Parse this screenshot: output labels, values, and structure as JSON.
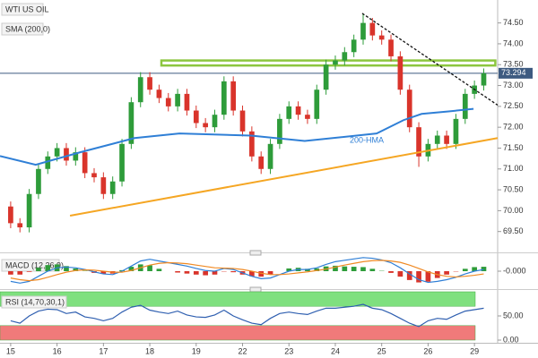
{
  "chart_data": [
    {
      "type": "candlestick",
      "title": "WTI US OIL",
      "subtitle": "SMA (200,0)",
      "up_color": "#2e9c3a",
      "down_color": "#d9342b",
      "x": [
        0,
        0.2,
        0.4,
        0.6,
        0.8,
        1,
        1.2,
        1.4,
        1.6,
        1.8,
        2,
        2.2,
        2.4,
        2.6,
        2.8,
        3,
        3.2,
        3.4,
        3.6,
        3.8,
        4,
        4.2,
        4.4,
        4.6,
        4.8,
        5,
        5.2,
        5.4,
        5.6,
        5.8,
        6,
        6.2,
        6.4,
        6.6,
        6.8,
        7,
        7.2,
        7.4,
        7.6,
        7.8,
        8,
        8.2,
        8.4,
        8.6,
        8.8,
        9,
        9.2,
        9.4,
        9.6,
        9.8,
        10,
        10.2
      ],
      "open": [
        70.1,
        69.7,
        69.6,
        70.4,
        71.0,
        71.3,
        71.5,
        71.2,
        71.4,
        70.9,
        70.8,
        70.4,
        70.7,
        71.6,
        72.6,
        73.2,
        72.9,
        72.7,
        72.5,
        72.8,
        72.4,
        72.1,
        72.0,
        72.3,
        73.1,
        72.4,
        71.9,
        71.3,
        71.0,
        71.6,
        72.2,
        72.5,
        72.3,
        72.2,
        72.9,
        73.5,
        73.6,
        73.8,
        74.1,
        74.5,
        74.2,
        74.1,
        73.7,
        72.9,
        72.0,
        71.3,
        71.6,
        71.8,
        71.6,
        72.2,
        72.8,
        73.0
      ],
      "high": [
        70.22,
        69.82,
        70.52,
        71.12,
        71.42,
        71.62,
        71.62,
        71.52,
        71.52,
        71.02,
        70.92,
        70.82,
        71.72,
        72.72,
        73.32,
        73.32,
        73.02,
        72.82,
        72.92,
        72.92,
        72.52,
        72.22,
        72.42,
        73.22,
        73.22,
        72.52,
        72.02,
        71.42,
        71.72,
        72.32,
        72.62,
        72.62,
        72.42,
        73.02,
        73.62,
        73.72,
        73.92,
        74.22,
        74.72,
        74.62,
        74.32,
        74.22,
        73.82,
        73.02,
        72.12,
        71.72,
        71.92,
        71.92,
        72.32,
        72.92,
        73.12,
        73.41
      ],
      "low": [
        69.58,
        69.48,
        69.48,
        70.28,
        70.88,
        71.18,
        71.08,
        71.08,
        70.78,
        70.68,
        70.28,
        70.28,
        70.58,
        71.48,
        72.48,
        72.78,
        72.58,
        72.38,
        72.38,
        72.28,
        71.98,
        71.88,
        71.88,
        72.18,
        72.28,
        71.78,
        71.18,
        70.88,
        70.88,
        71.48,
        72.08,
        72.18,
        72.08,
        72.08,
        72.78,
        73.38,
        73.48,
        73.68,
        73.98,
        74.08,
        73.98,
        73.58,
        72.78,
        71.88,
        71.05,
        71.18,
        71.48,
        71.48,
        71.48,
        72.08,
        72.68,
        72.88
      ],
      "close": [
        69.7,
        69.6,
        70.4,
        71.0,
        71.3,
        71.5,
        71.2,
        71.4,
        70.9,
        70.8,
        70.4,
        70.7,
        71.6,
        72.6,
        73.2,
        72.9,
        72.7,
        72.5,
        72.8,
        72.4,
        72.1,
        72.0,
        72.3,
        73.1,
        72.4,
        71.9,
        71.3,
        71.0,
        71.6,
        72.2,
        72.5,
        72.3,
        72.2,
        72.9,
        73.5,
        73.6,
        73.8,
        74.1,
        74.5,
        74.2,
        74.1,
        73.7,
        72.9,
        72.0,
        71.3,
        71.6,
        71.8,
        71.6,
        72.2,
        72.8,
        73.0,
        73.294
      ],
      "xlim": [
        -0.23,
        10.5
      ],
      "xticks": [
        {
          "value": 0,
          "label": "15"
        },
        {
          "value": 1,
          "label": "16"
        },
        {
          "value": 2,
          "label": "17"
        },
        {
          "value": 3,
          "label": "18"
        },
        {
          "value": 4,
          "label": "19"
        },
        {
          "value": 5,
          "label": "22"
        },
        {
          "value": 6,
          "label": "23"
        },
        {
          "value": 7,
          "label": "24"
        },
        {
          "value": 8,
          "label": "25"
        },
        {
          "value": 9,
          "label": "26"
        },
        {
          "value": 10,
          "label": "29"
        }
      ],
      "ylim": [
        69.0,
        75.05
      ],
      "yticks": [
        {
          "value": 69.5,
          "label": "69.50"
        },
        {
          "value": 70,
          "label": "70.00"
        },
        {
          "value": 70.5,
          "label": "70.50"
        },
        {
          "value": 71,
          "label": "71.00"
        },
        {
          "value": 71.5,
          "label": "71.50"
        },
        {
          "value": 72,
          "label": "72.00"
        },
        {
          "value": 72.5,
          "label": "72.50"
        },
        {
          "value": 73,
          "label": "73.00"
        },
        {
          "value": 73.5,
          "label": "73.50"
        },
        {
          "value": 74,
          "label": "74.00"
        },
        {
          "value": 74.5,
          "label": "74.50"
        }
      ],
      "last_price": 73.294,
      "last_price_color": "#3d5a80",
      "hma": {
        "label": "200-HMA",
        "color": "#2f7fd6",
        "x": [
          -0.23,
          0.54,
          1.5,
          2.67,
          3.64,
          5.18,
          6.34,
          7.89,
          8.47,
          8.86,
          9.44,
          9.98
        ],
        "values": [
          71.31,
          71.1,
          71.4,
          71.74,
          71.85,
          71.8,
          71.67,
          71.85,
          72.17,
          72.32,
          72.38,
          72.44
        ]
      },
      "trendlines": [
        {
          "x": [
            1.28,
            10.5
          ],
          "values": [
            69.88,
            71.74
          ],
          "color": "#f5a623",
          "dashed": false
        },
        {
          "x": [
            7.58,
            10.5
          ],
          "values": [
            74.73,
            72.53
          ],
          "color": "#111111",
          "dashed": true
        }
      ],
      "zone": {
        "x": [
          3.25,
          10.45
        ],
        "values": [
          73.48,
          73.6
        ],
        "color": "#8cc63f"
      }
    },
    {
      "type": "macd",
      "title": "MACD (12,26,9)",
      "macd_color": "#2f7fd6",
      "signal_color": "#f08a24",
      "up_color": "#2e9c3a",
      "down_color": "#d9342b",
      "macd": [
        -0.3,
        -0.35,
        -0.3,
        -0.15,
        0,
        0.1,
        0.12,
        0.1,
        0.05,
        -0.02,
        -0.08,
        -0.1,
        0,
        0.15,
        0.3,
        0.35,
        0.3,
        0.25,
        0.2,
        0.15,
        0.08,
        0.02,
        0,
        0.08,
        0.05,
        -0.05,
        -0.15,
        -0.22,
        -0.2,
        -0.1,
        0,
        0.05,
        0.05,
        0.1,
        0.2,
        0.28,
        0.32,
        0.36,
        0.4,
        0.38,
        0.33,
        0.25,
        0.1,
        -0.08,
        -0.25,
        -0.33,
        -0.3,
        -0.25,
        -0.18,
        -0.08,
        0,
        0.05
      ],
      "signal": [
        -0.2,
        -0.25,
        -0.28,
        -0.25,
        -0.18,
        -0.1,
        -0.03,
        0.02,
        0.04,
        0.03,
        0,
        -0.03,
        -0.03,
        0.02,
        0.1,
        0.18,
        0.23,
        0.25,
        0.24,
        0.22,
        0.18,
        0.14,
        0.1,
        0.09,
        0.08,
        0.05,
        0,
        -0.06,
        -0.1,
        -0.1,
        -0.08,
        -0.05,
        -0.02,
        0.02,
        0.06,
        0.12,
        0.18,
        0.23,
        0.28,
        0.31,
        0.32,
        0.3,
        0.26,
        0.18,
        0.08,
        -0.02,
        -0.1,
        -0.15,
        -0.17,
        -0.15,
        -0.12,
        -0.08
      ],
      "histogram": [
        -0.1,
        -0.1,
        -0.02,
        0.1,
        0.18,
        0.2,
        0.15,
        0.08,
        0.01,
        -0.05,
        -0.08,
        -0.07,
        0.03,
        0.13,
        0.2,
        0.17,
        0.07,
        0,
        -0.04,
        -0.07,
        -0.1,
        -0.12,
        -0.1,
        -0.01,
        -0.03,
        -0.1,
        -0.15,
        -0.16,
        -0.1,
        0,
        0.08,
        0.1,
        0.07,
        0.08,
        0.14,
        0.16,
        0.14,
        0.13,
        0.12,
        0.07,
        0.01,
        -0.05,
        -0.16,
        -0.26,
        -0.33,
        -0.31,
        -0.2,
        -0.1,
        -0.01,
        0.07,
        0.12,
        0.13
      ],
      "ylim": [
        -0.5,
        0.5
      ],
      "yticks": [
        {
          "value": 0,
          "label": "-0.000"
        }
      ]
    },
    {
      "type": "rsi",
      "title": "RSI (14,70,30,1)",
      "color": "#2f5fb0",
      "overbought": [
        70,
        100
      ],
      "overbought_color": "#7fe07f",
      "oversold": [
        0,
        30
      ],
      "oversold_color": "#f07a7a",
      "values": [
        40,
        35,
        50,
        60,
        64,
        63,
        55,
        58,
        48,
        45,
        40,
        45,
        58,
        68,
        72,
        62,
        58,
        55,
        60,
        52,
        48,
        47,
        52,
        62,
        50,
        42,
        35,
        32,
        45,
        55,
        58,
        55,
        53,
        60,
        66,
        66,
        68,
        70,
        74,
        66,
        63,
        55,
        45,
        35,
        28,
        40,
        45,
        43,
        52,
        60,
        63,
        66
      ],
      "ylim": [
        0,
        100
      ],
      "yticks": [
        {
          "value": 50,
          "label": "50.00"
        },
        {
          "value": 0,
          "label": "0.00"
        }
      ]
    }
  ]
}
